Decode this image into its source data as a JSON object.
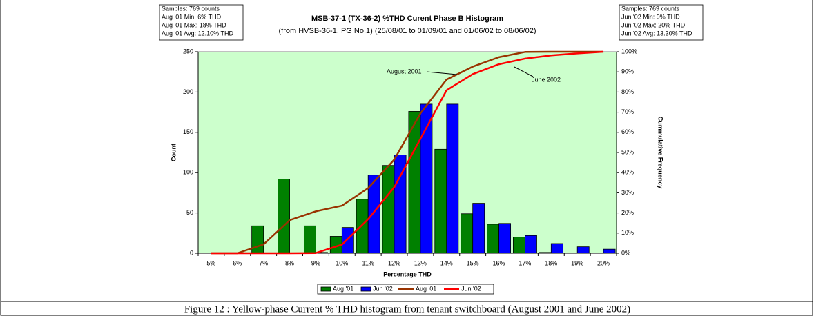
{
  "chart_data": {
    "type": "bar",
    "title": "MSB-37-1 (TX-36-2) %THD Curent Phase B Histogram",
    "subtitle": "(from HVSB-36-1, PG No.1) (25/08/01 to 01/09/01 and 01/06/02 to 08/06/02)",
    "x_label": "Percentage THD",
    "y_label": "Count",
    "y2_label": "Cummulative Frequency",
    "caption": "Figure 12 : Yellow-phase Current % THD histogram from tenant switchboard (August 2001 and June 2002)",
    "info_left": [
      "Samples: 769 counts",
      "Aug '01 Min: 6% THD",
      "Aug '01 Max: 18% THD",
      "Aug '01 Avg: 12.10% THD"
    ],
    "info_right": [
      "Samples: 769 counts",
      "Jun '02 Min: 9% THD",
      "Jun '02 Max: 20% THD",
      "Jun '02 Avg: 13.30% THD"
    ],
    "annotations": [
      "August 2001",
      "June 2002"
    ],
    "categories": [
      "5%",
      "6%",
      "7%",
      "8%",
      "9%",
      "10%",
      "11%",
      "12%",
      "13%",
      "14%",
      "15%",
      "16%",
      "17%",
      "18%",
      "19%",
      "20%"
    ],
    "series": [
      {
        "name": "Aug '01",
        "type": "bar",
        "color": "#008000",
        "values": [
          0,
          0,
          34,
          92,
          34,
          21,
          67,
          109,
          176,
          129,
          49,
          36,
          20,
          1,
          0,
          0
        ]
      },
      {
        "name": "Jun '02",
        "type": "bar",
        "color": "#0000ff",
        "values": [
          0,
          0,
          0,
          0,
          1,
          32,
          97,
          122,
          185,
          185,
          62,
          37,
          22,
          12,
          8,
          5
        ]
      },
      {
        "name": "Aug '01",
        "type": "line",
        "axis": "y2",
        "color": "#993300",
        "values": [
          0,
          0,
          4.4,
          16.4,
          20.8,
          23.6,
          32.3,
          46.5,
          69.4,
          86.2,
          92.6,
          97.3,
          99.9,
          100,
          100,
          100
        ]
      },
      {
        "name": "Jun '02",
        "type": "line",
        "axis": "y2",
        "color": "#ff0000",
        "values": [
          0,
          0,
          0,
          0,
          0.1,
          4.3,
          16.9,
          32.8,
          56.8,
          80.9,
          88.9,
          93.8,
          96.6,
          98.2,
          99.2,
          100
        ]
      }
    ],
    "ylim": [
      0,
      250
    ],
    "yticks": [
      0,
      50,
      100,
      150,
      200,
      250
    ],
    "y2lim": [
      0,
      100
    ],
    "y2ticks": [
      {
        "value": 0,
        "label": "0%"
      },
      {
        "value": 10,
        "label": "10%"
      },
      {
        "value": 20,
        "label": "20%"
      },
      {
        "value": 30,
        "label": "30%"
      },
      {
        "value": 40,
        "label": "40%"
      },
      {
        "value": 50,
        "label": "50%"
      },
      {
        "value": 60,
        "label": "60%"
      },
      {
        "value": 70,
        "label": "70%"
      },
      {
        "value": 80,
        "label": "80%"
      },
      {
        "value": 90,
        "label": "90%"
      },
      {
        "value": 100,
        "label": "100%"
      }
    ],
    "grid": false,
    "plot_background": "#ccffcc",
    "legend": "bottom"
  }
}
